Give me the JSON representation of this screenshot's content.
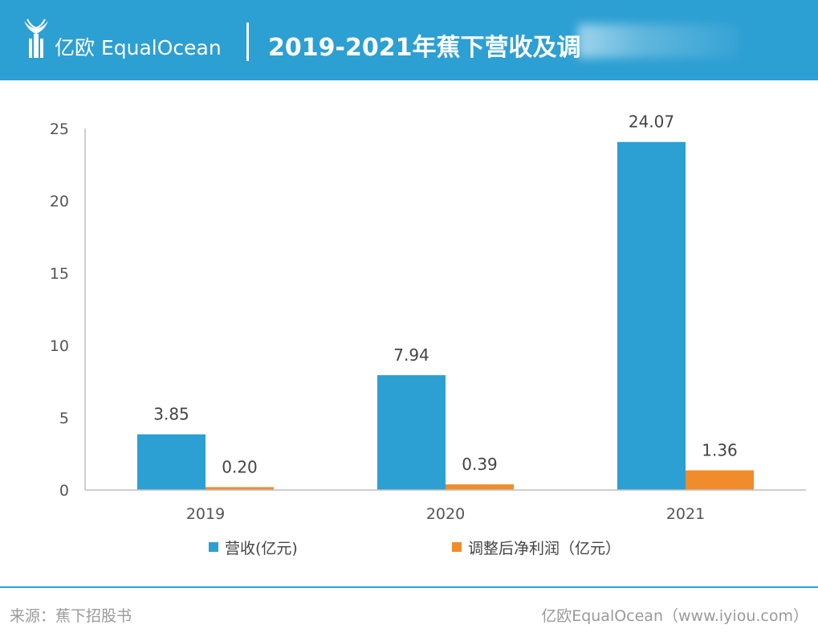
{
  "header": {
    "brand": "亿欧 EqualOcean",
    "title": "2019-2021年蕉下营收及调",
    "bg_color": "#2c9fd3"
  },
  "chart_data": {
    "type": "bar",
    "categories": [
      "2019",
      "2020",
      "2021"
    ],
    "series": [
      {
        "name": "营收(亿元)",
        "values": [
          3.85,
          7.94,
          24.07
        ],
        "labels": [
          "3.85",
          "7.94",
          "24.07"
        ],
        "color": "#2c9fd3"
      },
      {
        "name": "调整后净利润（亿元）",
        "values": [
          0.2,
          0.39,
          1.36
        ],
        "labels": [
          "0.20",
          "0.39",
          "1.36"
        ],
        "color": "#f08c2c"
      }
    ],
    "ylim": [
      0,
      25
    ],
    "yticks": [
      "0",
      "5",
      "10",
      "15",
      "20",
      "25"
    ],
    "grid": false,
    "legend": "bottom"
  },
  "footer": {
    "source": "来源：蕉下招股书",
    "credit": "亿欧EqualOcean（www.iyiou.com）"
  }
}
